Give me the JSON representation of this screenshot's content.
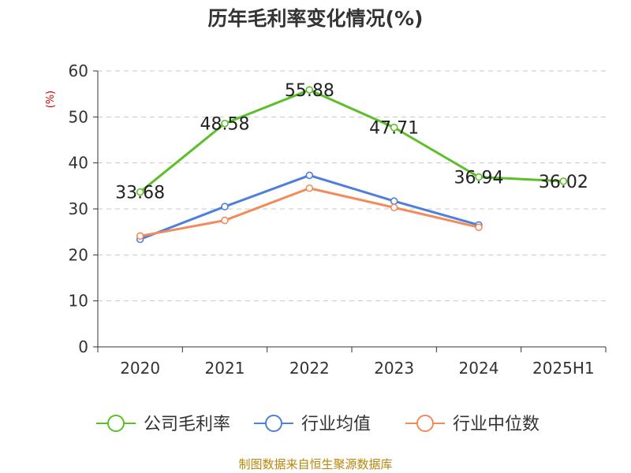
{
  "chart_data": {
    "type": "line",
    "title": "历年毛利率变化情况(%)",
    "ylabel": "(%)",
    "categories": [
      "2020",
      "2021",
      "2022",
      "2023",
      "2024",
      "2025H1"
    ],
    "ylim": [
      0,
      60
    ],
    "yticks": [
      0,
      10,
      20,
      30,
      40,
      50,
      60
    ],
    "grid": true,
    "legend_position": "bottom",
    "series": [
      {
        "name": "公司毛利率",
        "color": "#5cbf2a",
        "values": [
          33.68,
          48.58,
          55.88,
          47.71,
          36.94,
          36.02
        ],
        "labels": [
          "33.68",
          "48.58",
          "55.88",
          "47.71",
          "36.94",
          "36.02"
        ]
      },
      {
        "name": "行业均值",
        "color": "#4f7fd9",
        "values": [
          23.4,
          30.5,
          37.3,
          31.7,
          26.5,
          null
        ]
      },
      {
        "name": "行业中位数",
        "color": "#f38a59",
        "values": [
          24.1,
          27.5,
          34.5,
          30.3,
          26.0,
          null
        ]
      }
    ]
  },
  "source": "制图数据来自恒生聚源数据库"
}
